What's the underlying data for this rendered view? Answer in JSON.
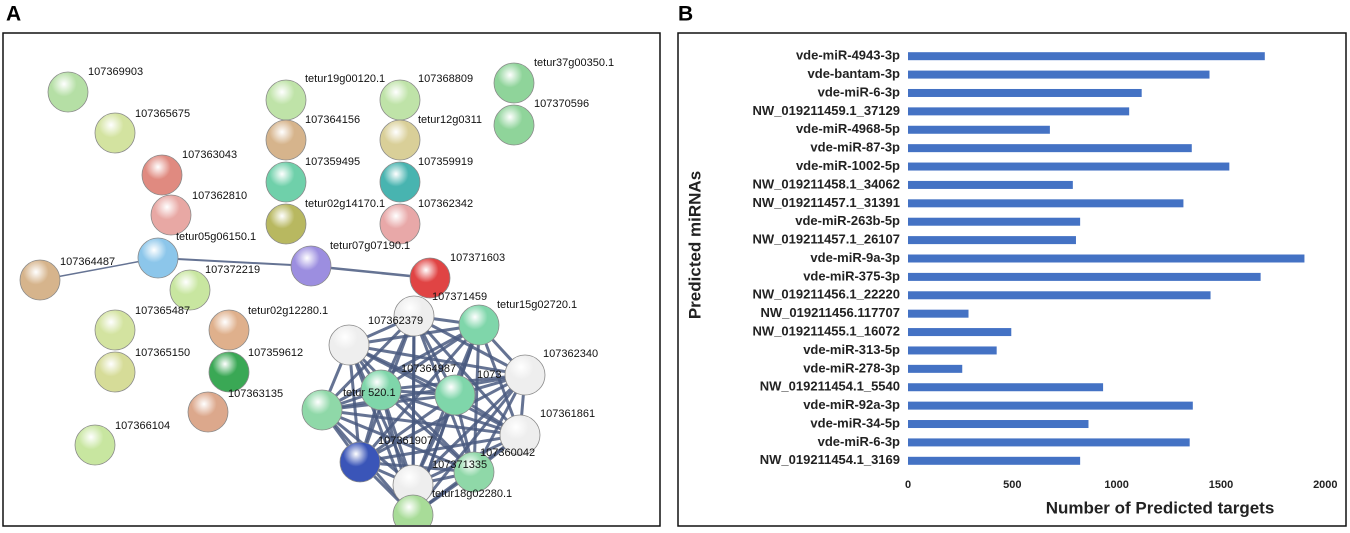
{
  "panel_labels": [
    "A",
    "B"
  ],
  "network": {
    "nodes": [
      {
        "label": "107369903"
      },
      {
        "label": "107365675"
      },
      {
        "label": "107363043"
      },
      {
        "label": "107362810"
      },
      {
        "label": "tetur05g06150.1"
      },
      {
        "label": "107364487"
      },
      {
        "label": "107372219"
      },
      {
        "label": "107365487"
      },
      {
        "label": "tetur02g12280.1"
      },
      {
        "label": "107365150"
      },
      {
        "label": "107359612"
      },
      {
        "label": "107363135"
      },
      {
        "label": "107366104"
      },
      {
        "label": "tetur19g00120.1"
      },
      {
        "label": "107364156"
      },
      {
        "label": "107359495"
      },
      {
        "label": "tetur02g14170.1"
      },
      {
        "label": "107368809"
      },
      {
        "label": "tetur12g0311"
      },
      {
        "label": "107359919"
      },
      {
        "label": "107362342"
      },
      {
        "label": "tetur37g00350.1"
      },
      {
        "label": "107370596"
      },
      {
        "label": "tetur07g07190.1"
      },
      {
        "label": "107371603"
      },
      {
        "label": "107371459"
      },
      {
        "label": "107362379"
      },
      {
        "label": "tetur15g02720.1"
      },
      {
        "label": "107362340"
      },
      {
        "label": "107364987"
      },
      {
        "label": "tetur 520.1"
      },
      {
        "label": "1073"
      },
      {
        "label": "107361861"
      },
      {
        "label": "107361907"
      },
      {
        "label": "107371335"
      },
      {
        "label": "107360042"
      },
      {
        "label": "tetur18g02280.1"
      }
    ]
  },
  "chart_data": {
    "type": "bar",
    "orientation": "horizontal",
    "xlabel": "Number of Predicted targets",
    "ylabel": "Predicted miRNAs",
    "categories": [
      "vde-miR-4943-3p",
      "vde-bantam-3p",
      "vde-miR-6-3p",
      "NW_019211459.1_37129",
      "vde-miR-4968-5p",
      "vde-miR-87-3p",
      "vde-miR-1002-5p",
      "NW_019211458.1_34062",
      "NW_019211457.1_31391",
      "vde-miR-263b-5p",
      "NW_019211457.1_26107",
      "vde-miR-9a-3p",
      "vde-miR-375-3p",
      "NW_019211456.1_22220",
      "NW_019211456.117707",
      "NW_019211455.1_16072",
      "vde-miR-313-5p",
      "vde-miR-278-3p",
      "NW_019211454.1_5540",
      "vde-miR-92a-3p",
      "vde-miR-34-5p",
      "vde-miR-6-3p",
      "NW_019211454.1_3169"
    ],
    "values": [
      1710,
      1445,
      1120,
      1060,
      680,
      1360,
      1540,
      790,
      1320,
      825,
      805,
      1900,
      1690,
      1450,
      290,
      495,
      425,
      260,
      935,
      1365,
      865,
      1350,
      825
    ],
    "color": "#4472c4",
    "xlim": [
      0,
      2080
    ],
    "xticks": [
      0,
      500,
      1000,
      1500,
      2000
    ]
  }
}
